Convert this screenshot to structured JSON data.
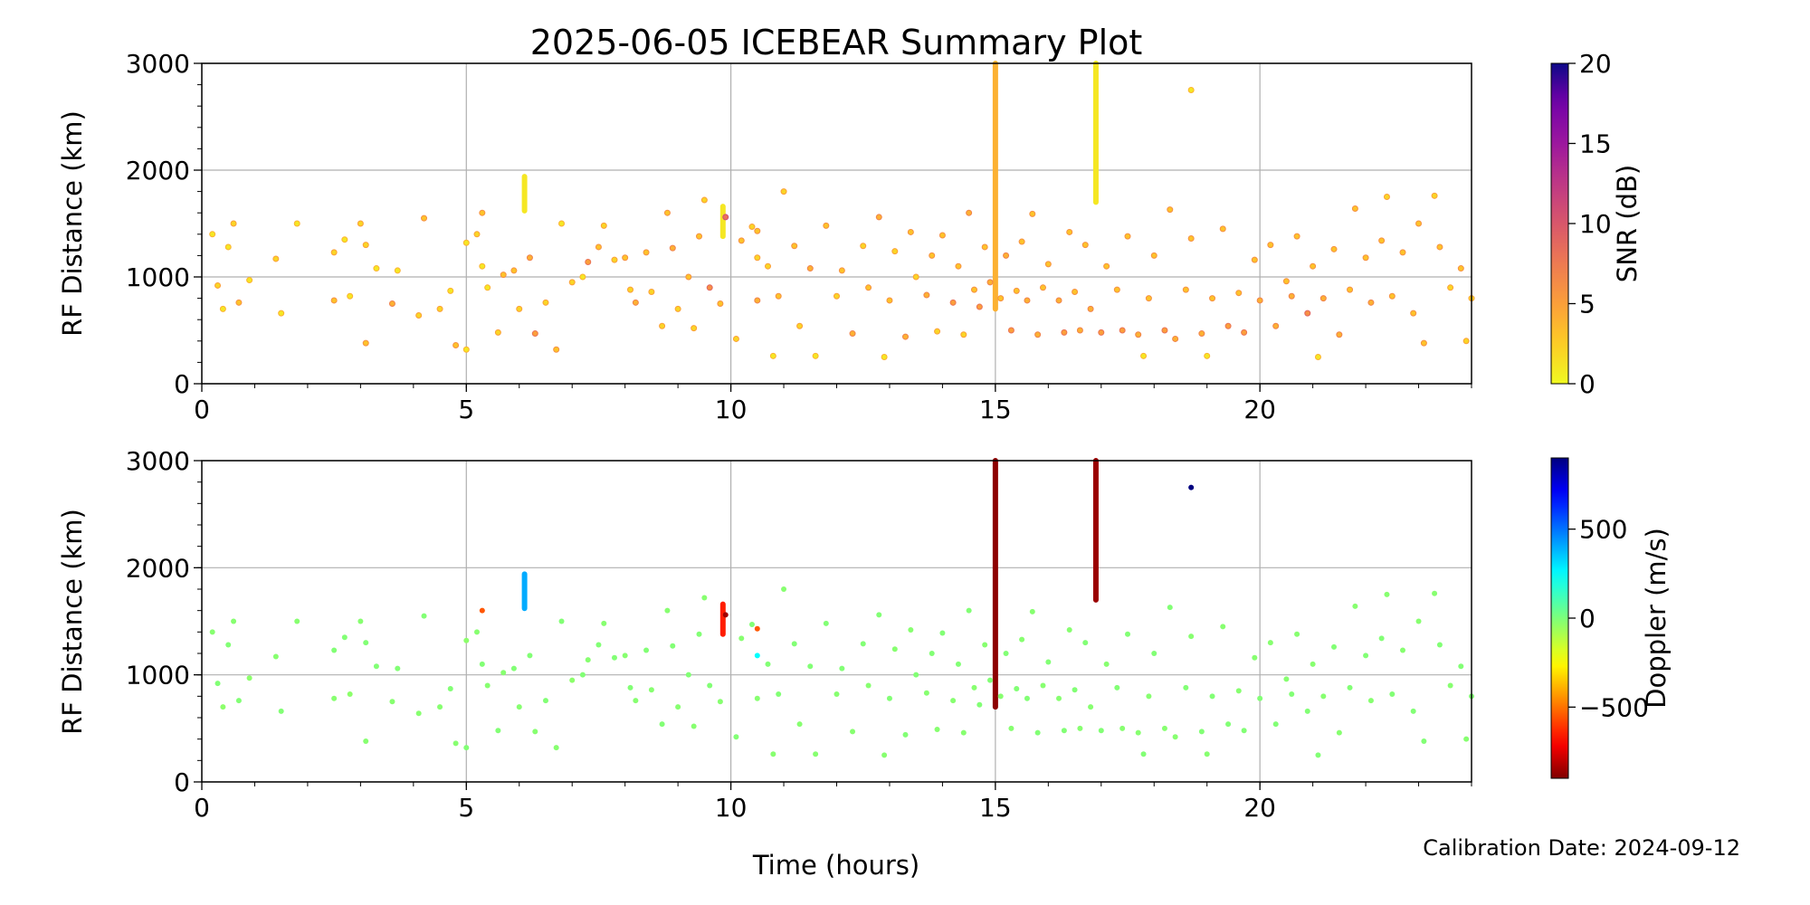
{
  "title": "2025-06-05 ICEBEAR Summary Plot",
  "calibration": "Calibration Date: 2024-09-12",
  "chart_data": [
    {
      "type": "scatter",
      "panel": "top",
      "ylabel": "RF Distance (km)",
      "xlabel": "",
      "xlim": [
        0,
        24
      ],
      "ylim": [
        0,
        3000
      ],
      "xticks": [
        "0",
        "5",
        "10",
        "15",
        "20"
      ],
      "yticks": [
        "0",
        "1000",
        "2000",
        "3000"
      ],
      "grid": true,
      "color_by": "snr",
      "colorbar": {
        "label": "SNR (dB)",
        "range": [
          0,
          20
        ],
        "ticks": [
          "0",
          "5",
          "10",
          "15",
          "20"
        ],
        "colormap": "plasma_r"
      }
    },
    {
      "type": "scatter",
      "panel": "bottom",
      "ylabel": "RF Distance (km)",
      "xlabel": "Time (hours)",
      "xlim": [
        0,
        24
      ],
      "ylim": [
        0,
        3000
      ],
      "xticks": [
        "0",
        "5",
        "10",
        "15",
        "20"
      ],
      "yticks": [
        "0",
        "1000",
        "2000",
        "3000"
      ],
      "grid": true,
      "color_by": "doppler",
      "colorbar": {
        "label": "Doppler (m/s)",
        "range": [
          -900,
          900
        ],
        "ticks": [
          "−500",
          "0",
          "500"
        ],
        "tick_values": [
          -500,
          0,
          500
        ],
        "colormap": "jet"
      }
    }
  ],
  "points_columns": [
    "time_hours",
    "rf_distance_km",
    "snr_db",
    "doppler_ms"
  ],
  "points": [
    [
      0.2,
      1400,
      1,
      -20
    ],
    [
      0.3,
      920,
      2,
      -10
    ],
    [
      0.4,
      700,
      1,
      -30
    ],
    [
      0.5,
      1280,
      1,
      -10
    ],
    [
      0.6,
      1500,
      2,
      -20
    ],
    [
      0.7,
      760,
      3,
      -10
    ],
    [
      0.9,
      970,
      1,
      -30
    ],
    [
      1.4,
      1170,
      2,
      -20
    ],
    [
      1.5,
      660,
      1,
      -10
    ],
    [
      1.8,
      1500,
      1,
      -20
    ],
    [
      2.5,
      1230,
      2,
      -10
    ],
    [
      2.5,
      780,
      3,
      -20
    ],
    [
      2.7,
      1350,
      1,
      -10
    ],
    [
      2.8,
      820,
      1,
      -30
    ],
    [
      3.0,
      1500,
      2,
      -20
    ],
    [
      3.1,
      1300,
      2,
      -10
    ],
    [
      3.1,
      380,
      3,
      -20
    ],
    [
      3.3,
      1080,
      1,
      -10
    ],
    [
      3.6,
      750,
      4,
      -20
    ],
    [
      3.7,
      1060,
      1,
      -10
    ],
    [
      4.1,
      640,
      2,
      -20
    ],
    [
      4.2,
      1550,
      3,
      -10
    ],
    [
      4.5,
      700,
      2,
      -20
    ],
    [
      4.7,
      870,
      1,
      -10
    ],
    [
      4.8,
      360,
      3,
      -20
    ],
    [
      5.0,
      320,
      1,
      -10
    ],
    [
      5.0,
      1320,
      1,
      -30
    ],
    [
      5.2,
      1400,
      2,
      -20
    ],
    [
      5.3,
      1100,
      1,
      -10
    ],
    [
      5.4,
      900,
      1,
      -20
    ],
    [
      5.6,
      480,
      2,
      -10
    ],
    [
      5.7,
      1020,
      3,
      -20
    ],
    [
      5.9,
      1060,
      3,
      -10
    ],
    [
      6.0,
      700,
      2,
      -20
    ],
    [
      6.2,
      1180,
      4,
      -10
    ],
    [
      6.3,
      470,
      5,
      -20
    ],
    [
      6.5,
      760,
      2,
      -10
    ],
    [
      6.7,
      320,
      3,
      -20
    ],
    [
      6.8,
      1500,
      1,
      -10
    ],
    [
      7.0,
      950,
      2,
      -30
    ],
    [
      7.2,
      1000,
      1,
      -10
    ],
    [
      7.3,
      1140,
      5,
      -20
    ],
    [
      7.5,
      1280,
      3,
      -10
    ],
    [
      7.6,
      1480,
      2,
      -20
    ],
    [
      7.8,
      1160,
      2,
      -10
    ],
    [
      8.0,
      1180,
      3,
      -20
    ],
    [
      8.1,
      880,
      2,
      -10
    ],
    [
      8.2,
      760,
      4,
      -20
    ],
    [
      8.4,
      1230,
      3,
      -10
    ],
    [
      8.5,
      860,
      2,
      -20
    ],
    [
      8.7,
      540,
      2,
      -10
    ],
    [
      8.8,
      1600,
      3,
      -20
    ],
    [
      8.9,
      1270,
      4,
      -10
    ],
    [
      9.0,
      700,
      2,
      -20
    ],
    [
      9.2,
      1000,
      3,
      -10
    ],
    [
      9.3,
      520,
      2,
      -20
    ],
    [
      9.4,
      1380,
      3,
      -10
    ],
    [
      9.5,
      1720,
      2,
      -20
    ],
    [
      9.6,
      900,
      6,
      -10
    ],
    [
      9.8,
      750,
      3,
      -20
    ],
    [
      10.1,
      420,
      2,
      -10
    ],
    [
      10.2,
      1340,
      3,
      -20
    ],
    [
      10.4,
      1470,
      2,
      -10
    ],
    [
      10.5,
      780,
      4,
      -20
    ],
    [
      10.7,
      1100,
      2,
      -10
    ],
    [
      10.8,
      260,
      1,
      -20
    ],
    [
      10.9,
      820,
      3,
      -10
    ],
    [
      11.0,
      1800,
      2,
      -20
    ],
    [
      11.2,
      1290,
      3,
      -10
    ],
    [
      11.3,
      540,
      2,
      -20
    ],
    [
      11.5,
      1080,
      4,
      -10
    ],
    [
      11.6,
      260,
      1,
      -20
    ],
    [
      11.8,
      1480,
      3,
      -10
    ],
    [
      12.0,
      820,
      2,
      -20
    ],
    [
      12.1,
      1060,
      3,
      -10
    ],
    [
      12.3,
      470,
      4,
      -20
    ],
    [
      12.5,
      1290,
      2,
      -10
    ],
    [
      12.6,
      900,
      3,
      -20
    ],
    [
      12.8,
      1560,
      4,
      -10
    ],
    [
      12.9,
      250,
      1,
      -20
    ],
    [
      13.0,
      780,
      3,
      -10
    ],
    [
      13.1,
      1240,
      2,
      -20
    ],
    [
      13.3,
      440,
      4,
      -10
    ],
    [
      13.4,
      1420,
      3,
      -20
    ],
    [
      13.5,
      1000,
      2,
      -10
    ],
    [
      13.7,
      830,
      4,
      -20
    ],
    [
      13.8,
      1200,
      3,
      -10
    ],
    [
      13.9,
      490,
      2,
      -20
    ],
    [
      14.0,
      1390,
      3,
      -10
    ],
    [
      14.2,
      760,
      5,
      -20
    ],
    [
      14.3,
      1100,
      3,
      -10
    ],
    [
      14.4,
      460,
      2,
      -20
    ],
    [
      14.5,
      1600,
      4,
      -10
    ],
    [
      14.6,
      880,
      3,
      -20
    ],
    [
      14.7,
      720,
      5,
      -10
    ],
    [
      14.8,
      1280,
      3,
      -20
    ],
    [
      14.9,
      950,
      4,
      -10
    ],
    [
      15.1,
      800,
      3,
      -20
    ],
    [
      15.2,
      1200,
      4,
      -10
    ],
    [
      15.3,
      500,
      5,
      -20
    ],
    [
      15.4,
      870,
      3,
      -10
    ],
    [
      15.5,
      1330,
      3,
      -20
    ],
    [
      15.6,
      780,
      4,
      -10
    ],
    [
      15.7,
      1590,
      3,
      -20
    ],
    [
      15.8,
      460,
      4,
      -10
    ],
    [
      15.9,
      900,
      3,
      -20
    ],
    [
      16.0,
      1120,
      3,
      -10
    ],
    [
      16.2,
      780,
      4,
      -20
    ],
    [
      16.3,
      480,
      5,
      -10
    ],
    [
      16.4,
      1420,
      3,
      -20
    ],
    [
      16.5,
      860,
      3,
      -10
    ],
    [
      16.6,
      500,
      4,
      -20
    ],
    [
      16.7,
      1300,
      3,
      -10
    ],
    [
      16.8,
      700,
      4,
      -20
    ],
    [
      17.0,
      480,
      5,
      -10
    ],
    [
      17.1,
      1100,
      3,
      -20
    ],
    [
      17.3,
      880,
      3,
      -10
    ],
    [
      17.4,
      500,
      5,
      -20
    ],
    [
      17.5,
      1380,
      3,
      -10
    ],
    [
      17.7,
      460,
      4,
      -20
    ],
    [
      17.8,
      260,
      1,
      -10
    ],
    [
      17.9,
      800,
      3,
      -20
    ],
    [
      18.0,
      1200,
      3,
      -10
    ],
    [
      18.2,
      500,
      5,
      -20
    ],
    [
      18.3,
      1630,
      3,
      -10
    ],
    [
      18.4,
      420,
      4,
      -20
    ],
    [
      18.6,
      880,
      3,
      -10
    ],
    [
      18.7,
      1360,
      3,
      -20
    ],
    [
      18.9,
      470,
      4,
      -10
    ],
    [
      19.0,
      260,
      1,
      -20
    ],
    [
      19.1,
      800,
      3,
      -10
    ],
    [
      19.3,
      1450,
      3,
      -20
    ],
    [
      19.4,
      540,
      5,
      -10
    ],
    [
      19.6,
      850,
      3,
      -20
    ],
    [
      19.7,
      480,
      5,
      -10
    ],
    [
      19.9,
      1160,
      3,
      -20
    ],
    [
      20.0,
      780,
      4,
      -10
    ],
    [
      20.2,
      1300,
      3,
      -20
    ],
    [
      20.3,
      540,
      4,
      -10
    ],
    [
      20.5,
      960,
      3,
      -20
    ],
    [
      20.6,
      820,
      4,
      -10
    ],
    [
      20.7,
      1380,
      3,
      -20
    ],
    [
      20.9,
      660,
      6,
      -10
    ],
    [
      21.0,
      1100,
      3,
      -20
    ],
    [
      21.1,
      250,
      1,
      -10
    ],
    [
      21.2,
      800,
      4,
      -20
    ],
    [
      21.4,
      1260,
      3,
      -10
    ],
    [
      21.5,
      460,
      4,
      -20
    ],
    [
      21.7,
      880,
      3,
      -10
    ],
    [
      21.8,
      1640,
      3,
      -20
    ],
    [
      22.0,
      1180,
      3,
      -10
    ],
    [
      22.1,
      760,
      4,
      -20
    ],
    [
      22.3,
      1340,
      3,
      -10
    ],
    [
      22.4,
      1750,
      2,
      -20
    ],
    [
      22.5,
      820,
      3,
      -10
    ],
    [
      22.7,
      1230,
      3,
      -20
    ],
    [
      22.9,
      660,
      3,
      -10
    ],
    [
      23.0,
      1500,
      3,
      -20
    ],
    [
      23.1,
      380,
      3,
      -10
    ],
    [
      23.3,
      1760,
      2,
      -20
    ],
    [
      23.4,
      1280,
      3,
      -10
    ],
    [
      23.6,
      900,
      2,
      -20
    ],
    [
      23.8,
      1080,
      3,
      -10
    ],
    [
      23.9,
      400,
      2,
      -20
    ],
    [
      24.0,
      800,
      2,
      -10
    ],
    [
      18.7,
      2750,
      1,
      900
    ],
    [
      10.5,
      1180,
      2,
      250
    ],
    [
      10.5,
      1430,
      3,
      -550
    ],
    [
      5.3,
      1600,
      3,
      -550
    ],
    [
      9.9,
      1560,
      8,
      -850
    ]
  ],
  "streaks_columns": [
    "time_hours",
    "range_start_km",
    "range_end_km",
    "snr_db",
    "doppler_ms"
  ],
  "streaks": [
    [
      6.1,
      1620,
      1940,
      1,
      400
    ],
    [
      9.85,
      1380,
      1660,
      1,
      -650
    ],
    [
      15.0,
      700,
      3000,
      4,
      -880
    ],
    [
      16.9,
      1700,
      3000,
      1,
      -860
    ]
  ]
}
